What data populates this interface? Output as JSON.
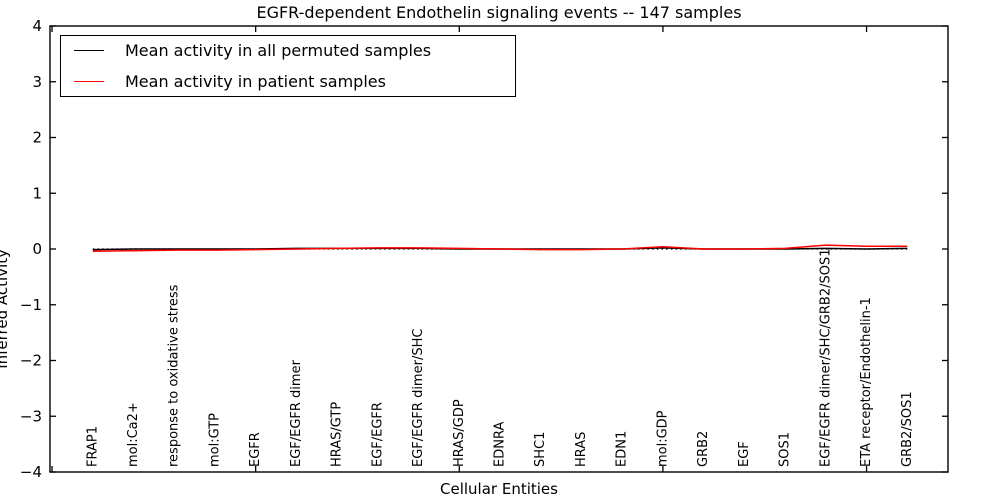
{
  "figure": {
    "title": "EGFR-dependent Endothelin signaling events -- 147 samples",
    "xlabel": "Cellular Entities",
    "ylabel": "Inferred Activity"
  },
  "chart_data": {
    "type": "line",
    "title": "EGFR-dependent Endothelin signaling events -- 147 samples",
    "xlabel": "Cellular Entities",
    "ylabel": "Inferred Activity",
    "ylim": [
      -4,
      4
    ],
    "yticks": [
      -4,
      -3,
      -2,
      -1,
      0,
      1,
      2,
      3,
      4
    ],
    "xlim": [
      -0.05,
      22
    ],
    "xticks": [
      0,
      5,
      10,
      15,
      20
    ],
    "grid": false,
    "legend_position": "upper left",
    "zero_reference_line": {
      "style": "dotted",
      "color": "#000000",
      "y": 0
    },
    "categories": [
      "FRAP1",
      "mol:Ca2+",
      "response to oxidative stress",
      "mol:GTP",
      "EGFR",
      "EGF/EGFR dimer",
      "HRAS/GTP",
      "EGF/EGFR",
      "EGF/EGFR dimer/SHC",
      "HRAS/GDP",
      "EDNRA",
      "SHC1",
      "HRAS",
      "EDN1",
      "mol:GDP",
      "GRB2",
      "EGF",
      "SOS1",
      "EGF/EGFR dimer/SHC/GRB2/SOS1",
      "ETA receptor/Endothelin-1",
      "GRB2/SOS1"
    ],
    "x_positions": [
      1,
      2,
      3,
      4,
      5,
      6,
      7,
      8,
      9,
      10,
      11,
      12,
      13,
      14,
      15,
      16,
      17,
      18,
      19,
      20,
      21
    ],
    "series": [
      {
        "name": "Mean activity in all permuted samples",
        "color": "#000000",
        "values": [
          -0.01,
          0.0,
          0.0,
          0.0,
          0.0,
          0.01,
          0.01,
          0.01,
          0.01,
          0.0,
          0.0,
          0.0,
          0.0,
          0.0,
          0.02,
          0.0,
          0.0,
          0.0,
          0.01,
          0.0,
          0.01
        ]
      },
      {
        "name": "Mean activity in patient samples",
        "color": "#ff0000",
        "values": [
          -0.04,
          -0.03,
          -0.02,
          -0.02,
          -0.01,
          0.0,
          0.01,
          0.02,
          0.02,
          0.01,
          0.0,
          -0.01,
          -0.01,
          0.0,
          0.04,
          0.0,
          0.0,
          0.01,
          0.07,
          0.05,
          0.05
        ]
      }
    ]
  }
}
